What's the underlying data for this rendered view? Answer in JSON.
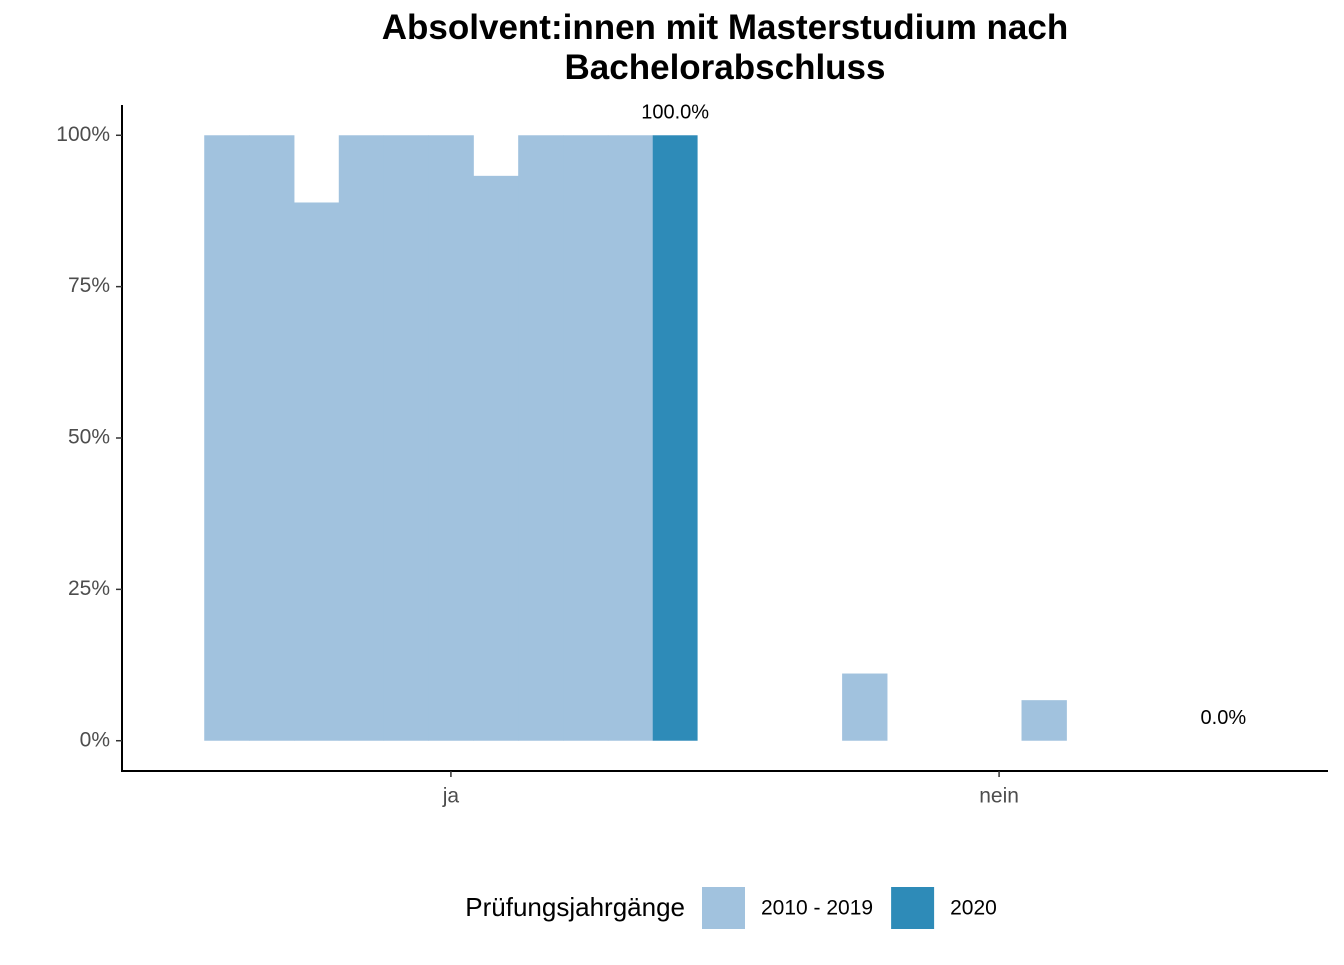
{
  "chart_data": {
    "type": "bar",
    "title": "Absolvent:innen mit Masterstudium nach Bachelorabschluss",
    "categories": [
      "ja",
      "nein"
    ],
    "series": [
      {
        "name": "2010 - 2019",
        "color": "#a1c2de",
        "values": [
          [
            100,
            100,
            88.9,
            100,
            100,
            100,
            93.3,
            100,
            100,
            100
          ],
          [
            0,
            0,
            11.1,
            0,
            0,
            0,
            6.7,
            0,
            0,
            0
          ]
        ]
      },
      {
        "name": "2020",
        "color": "#2e8bb8",
        "values": [
          100,
          0
        ],
        "value_labels": [
          "100.0%",
          "0.0%"
        ]
      }
    ],
    "ylim": [
      -5,
      105
    ],
    "yticks": [
      {
        "value": 0,
        "label": "0%"
      },
      {
        "value": 25,
        "label": "25%"
      },
      {
        "value": 50,
        "label": "50%"
      },
      {
        "value": 75,
        "label": "75%"
      },
      {
        "value": 100,
        "label": "100%"
      }
    ],
    "legend_title": "Prüfungsjahrgänge",
    "legend_position": "bottom",
    "grid": false
  }
}
